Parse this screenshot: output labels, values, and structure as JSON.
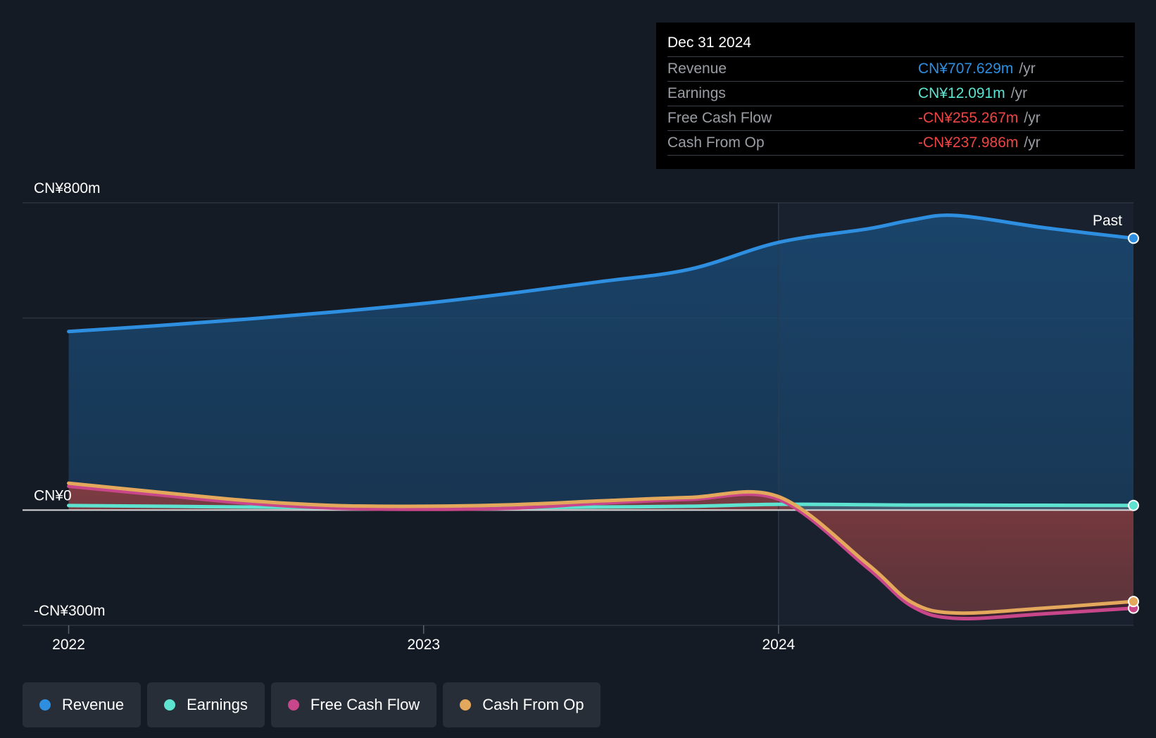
{
  "tooltip": {
    "date": "Dec 31 2024",
    "rows": [
      {
        "label": "Revenue",
        "value": "CN¥707.629m",
        "unit": "/yr",
        "color": "#2e8fe0"
      },
      {
        "label": "Earnings",
        "value": "CN¥12.091m",
        "unit": "/yr",
        "color": "#5ee3d0"
      },
      {
        "label": "Free Cash Flow",
        "value": "-CN¥255.267m",
        "unit": "/yr",
        "color": "#ef4444"
      },
      {
        "label": "Cash From Op",
        "value": "-CN¥237.986m",
        "unit": "/yr",
        "color": "#ef4444"
      }
    ]
  },
  "past_label": "Past",
  "legend": [
    {
      "label": "Revenue",
      "color": "#2e8fe0"
    },
    {
      "label": "Earnings",
      "color": "#5ee3d0"
    },
    {
      "label": "Free Cash Flow",
      "color": "#c8468a"
    },
    {
      "label": "Cash From Op",
      "color": "#e3a85c"
    }
  ],
  "chart_data": {
    "type": "area",
    "y_tick_labels": [
      "CN¥800m",
      "CN¥0",
      "-CN¥300m"
    ],
    "y_ticks": [
      800,
      0,
      -300
    ],
    "ylim": [
      -300,
      800
    ],
    "x_tick_labels": [
      "2022",
      "2023",
      "2024"
    ],
    "x_ticks": [
      2022.0,
      2023.0,
      2024.0
    ],
    "xlim": [
      2021.87,
      2025.0
    ],
    "past_start": 2024.0,
    "gridlines": [
      800,
      500,
      0,
      -300
    ],
    "x": [
      2022.0,
      2022.25,
      2022.5,
      2022.75,
      2023.0,
      2023.25,
      2023.5,
      2023.75,
      2024.0,
      2024.25,
      2024.375,
      2024.5,
      2024.75,
      2025.0
    ],
    "series": [
      {
        "name": "Revenue",
        "color": "#2e8fe0",
        "values": [
          465,
          480,
          497,
          516,
          538,
          565,
          595,
          627,
          697,
          732,
          755,
          767,
          735,
          707.629
        ]
      },
      {
        "name": "Earnings",
        "color": "#5ee3d0",
        "values": [
          12,
          10,
          8,
          6,
          5,
          6,
          8,
          10,
          15,
          14,
          13,
          13,
          12.5,
          12.091
        ]
      },
      {
        "name": "Free Cash Flow",
        "color": "#c8468a",
        "values": [
          62,
          40,
          18,
          5,
          2,
          5,
          18,
          28,
          28,
          -150,
          -250,
          -282,
          -270,
          -255.267
        ]
      },
      {
        "name": "Cash From Op",
        "color": "#e3a85c",
        "values": [
          70,
          47,
          25,
          12,
          10,
          14,
          24,
          33,
          35,
          -140,
          -240,
          -268,
          -255,
          -237.986
        ]
      }
    ]
  }
}
